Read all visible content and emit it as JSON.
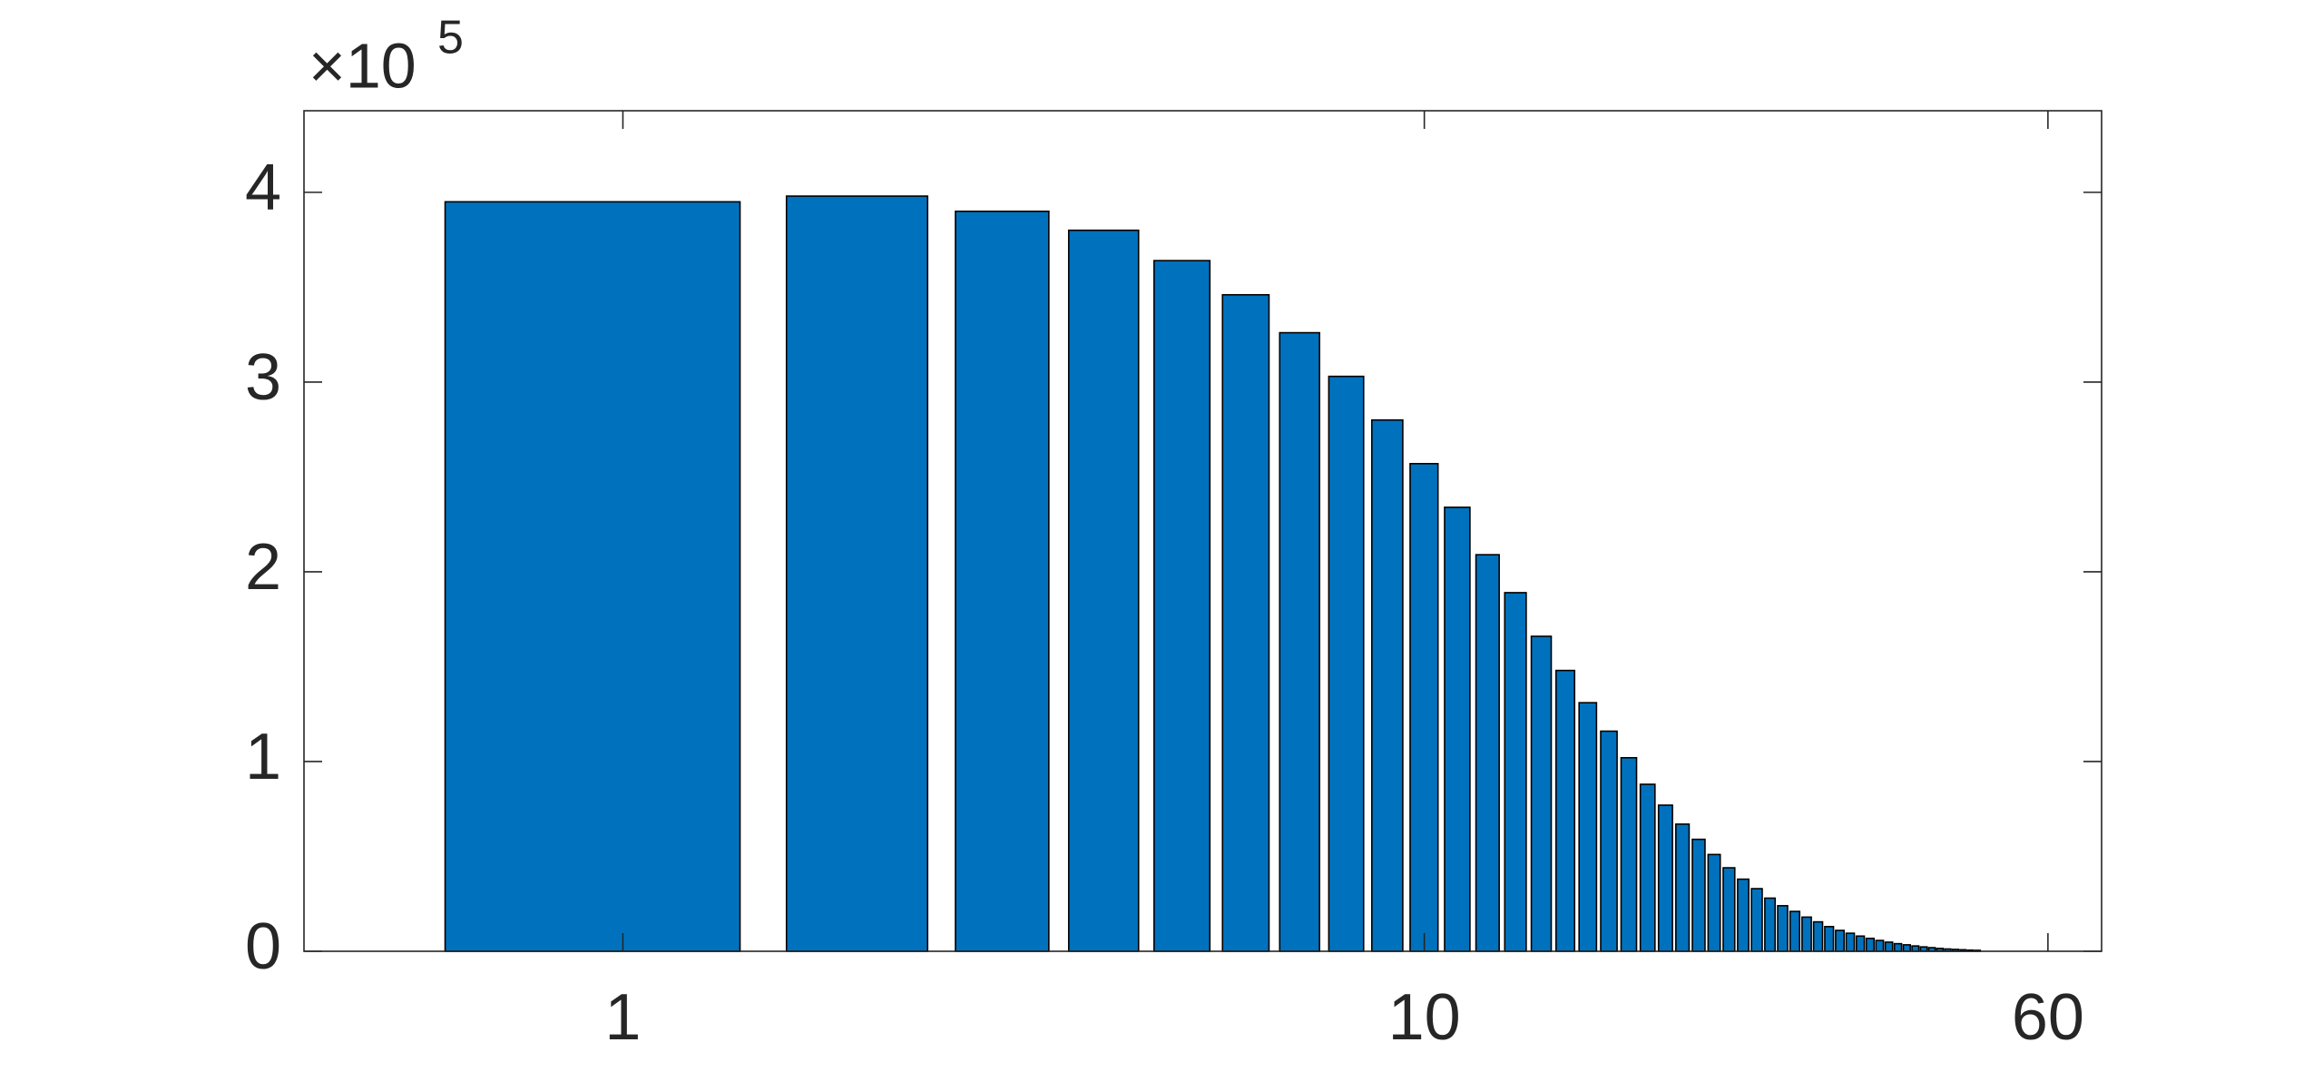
{
  "chart_data": {
    "type": "bar",
    "x": [
      1,
      2,
      3,
      4,
      5,
      6,
      7,
      8,
      9,
      10,
      11,
      12,
      13,
      14,
      15,
      16,
      17,
      18,
      19,
      20,
      21,
      22,
      23,
      24,
      25,
      26,
      27,
      28,
      29,
      30,
      31,
      32,
      33,
      34,
      35,
      36,
      37,
      38,
      39,
      40,
      41,
      42,
      43,
      44,
      45,
      46,
      47,
      48,
      49
    ],
    "values": [
      395000,
      398000,
      390000,
      380000,
      364000,
      346000,
      326000,
      303000,
      280000,
      257000,
      234000,
      209000,
      189000,
      166000,
      148000,
      131000,
      116000,
      102000,
      88000,
      77000,
      67000,
      59000,
      51000,
      44000,
      38000,
      33000,
      28000,
      24000,
      21000,
      18000,
      15500,
      13000,
      11000,
      9500,
      8000,
      6800,
      5700,
      4800,
      4000,
      3400,
      2800,
      2300,
      1900,
      1500,
      1200,
      1000,
      800,
      600,
      500
    ],
    "color": "#0072bd",
    "xlim": [
      0.4,
      70
    ],
    "xticks": [
      1,
      10,
      60
    ],
    "x_log": true,
    "ylim": [
      0,
      443000
    ],
    "yticks": [
      {
        "value": 0,
        "label": "0"
      },
      {
        "value": 100000,
        "label": "1"
      },
      {
        "value": 200000,
        "label": "2"
      },
      {
        "value": 300000,
        "label": "3"
      },
      {
        "value": 400000,
        "label": "4"
      }
    ],
    "y_exponent_base": "×10",
    "y_exponent": 5,
    "grid": false
  }
}
